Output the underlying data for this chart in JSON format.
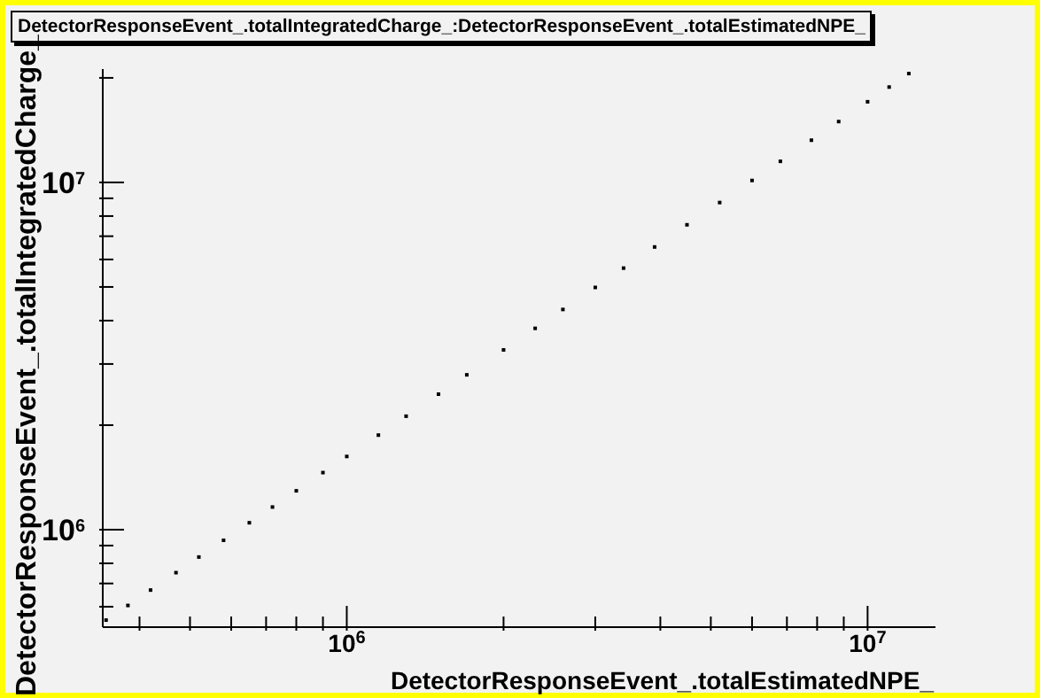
{
  "chart_data": {
    "type": "scatter",
    "title": "DetectorResponseEvent_.totalIntegratedCharge_:DetectorResponseEvent_.totalEstimatedNPE_",
    "xlabel": "DetectorResponseEvent_.totalEstimatedNPE_",
    "ylabel": "DetectorResponseEvent_.totalIntegratedCharge_",
    "log": "xy",
    "marker": "square",
    "xlim": [
      340000,
      13500000
    ],
    "ylim": [
      524000,
      21200000
    ],
    "xticks": [
      {
        "value": 400000,
        "label": null
      },
      {
        "value": 500000,
        "label": null
      },
      {
        "value": 600000,
        "label": null
      },
      {
        "value": 700000,
        "label": null
      },
      {
        "value": 800000,
        "label": null
      },
      {
        "value": 900000,
        "label": null
      },
      {
        "value": 1000000,
        "label": "10$^{6}$"
      },
      {
        "value": 2000000,
        "label": null
      },
      {
        "value": 3000000,
        "label": null
      },
      {
        "value": 4000000,
        "label": null
      },
      {
        "value": 5000000,
        "label": null
      },
      {
        "value": 6000000,
        "label": null
      },
      {
        "value": 7000000,
        "label": null
      },
      {
        "value": 8000000,
        "label": null
      },
      {
        "value": 9000000,
        "label": null
      },
      {
        "value": 10000000,
        "label": "10$^{7}$"
      }
    ],
    "yticks": [
      {
        "value": 600000,
        "label": null
      },
      {
        "value": 700000,
        "label": null
      },
      {
        "value": 800000,
        "label": null
      },
      {
        "value": 900000,
        "label": null
      },
      {
        "value": 1000000,
        "label": "10$^{6}$"
      },
      {
        "value": 2000000,
        "label": null
      },
      {
        "value": 3000000,
        "label": null
      },
      {
        "value": 4000000,
        "label": null
      },
      {
        "value": 5000000,
        "label": null
      },
      {
        "value": 6000000,
        "label": null
      },
      {
        "value": 7000000,
        "label": null
      },
      {
        "value": 8000000,
        "label": null
      },
      {
        "value": 9000000,
        "label": null
      },
      {
        "value": 10000000,
        "label": "10$^{7}$"
      },
      {
        "value": 20000000,
        "label": null
      }
    ],
    "x": [
      345000,
      380000,
      420000,
      470000,
      520000,
      580000,
      650000,
      720000,
      800000,
      900000,
      1000000,
      1150000,
      1300000,
      1500000,
      1700000,
      2000000,
      2300000,
      2600000,
      3000000,
      3400000,
      3900000,
      4500000,
      5200000,
      6000000,
      6800000,
      7800000,
      8800000,
      10000000,
      11000000,
      12000000
    ],
    "series": [
      {
        "color": "#000000",
        "values": [
          549000,
          605000,
          670000,
          752000,
          834000,
          932000,
          1047000,
          1162000,
          1294000,
          1460000,
          1625000,
          1872000,
          2122000,
          2456000,
          2792000,
          3294000,
          3800000,
          4307000,
          4984000,
          5665000,
          6518000,
          7550000,
          8750000,
          10130000,
          11500000,
          13230000,
          14970000,
          17070000,
          18820000,
          20580000
        ]
      }
    ]
  }
}
